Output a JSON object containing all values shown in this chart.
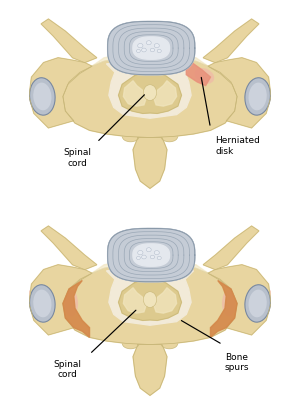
{
  "background_color": "#ffffff",
  "bone_color": "#e8d5a0",
  "bone_color2": "#dcc98a",
  "bone_dark": "#c9b87a",
  "bone_light": "#f0e4bc",
  "disk_outer": "#c5ccd6",
  "disk_mid": "#ced5de",
  "disk_inner": "#d8dee8",
  "disk_nucleus": "#e4e8ee",
  "disk_blob": "#dde2ea",
  "red_color": "#e8907a",
  "pink_color": "#f0b8a8",
  "orange_color": "#d4884a",
  "orange_light": "#e8a870",
  "nerve_gray": "#b8c0cc",
  "nerve_light": "#ccd2dc",
  "spinal_bg": "#f2ead8",
  "label_color": "#000000",
  "label1_top": "Spinal\ncord",
  "label2_top": "Herniated\ndisk",
  "label1_bot": "Spinal\ncord",
  "label2_bot": "Bone\nspurs",
  "figsize": [
    3.0,
    4.14
  ],
  "dpi": 100
}
